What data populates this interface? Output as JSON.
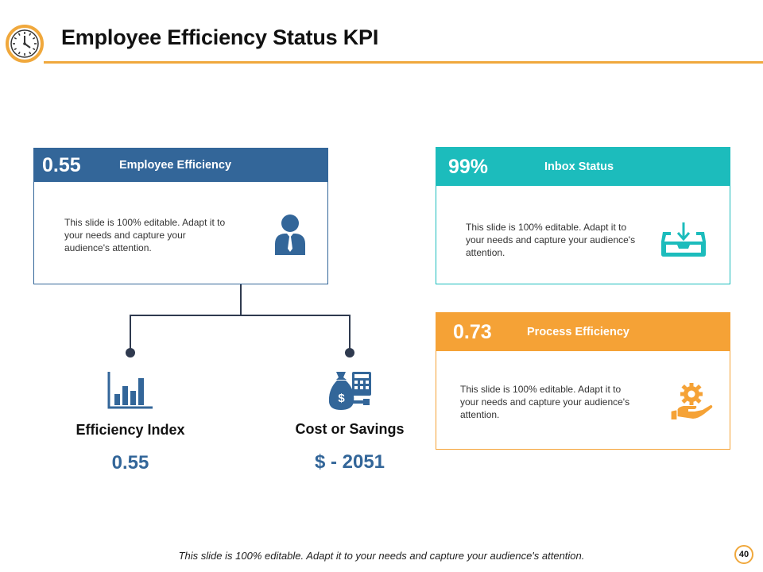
{
  "header": {
    "title": "Employee Efficiency Status KPI",
    "icon": "clock-icon"
  },
  "cards": {
    "employee": {
      "value": "0.55",
      "label": "Employee Efficiency",
      "description": "This slide is 100% editable. Adapt it to your needs and capture your audience's attention.",
      "icon": "employee-icon",
      "color": "#336699"
    },
    "inbox": {
      "value": "99%",
      "label": "Inbox Status",
      "description": "This slide is 100% editable. Adapt it to your needs and capture your audience's attention.",
      "icon": "inbox-icon",
      "color": "#1cbcbc"
    },
    "process": {
      "value": "0.73",
      "label": "Process Efficiency",
      "description": "This slide is 100% editable. Adapt it to your needs and capture your audience's attention.",
      "icon": "gear-hand-icon",
      "color": "#f5a236"
    }
  },
  "metrics": {
    "efficiency_index": {
      "label": "Efficiency Index",
      "value": "0.55",
      "icon": "bar-chart-icon"
    },
    "cost_savings": {
      "label": "Cost or Savings",
      "value": "$ - 2051",
      "icon": "money-bag-calculator-icon"
    }
  },
  "footer": {
    "text": "This slide is 100% editable.  Adapt it to your needs and capture your audience's attention.",
    "page_number": "40"
  }
}
